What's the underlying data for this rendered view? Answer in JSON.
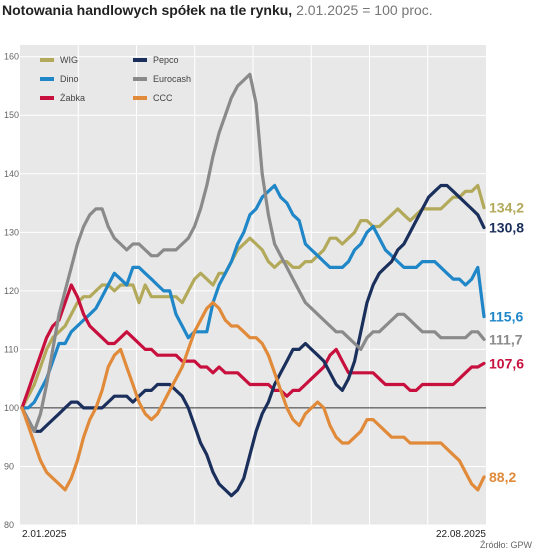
{
  "title": {
    "main": "Notowania handlowych spółek na tle rynku,",
    "sub": "2.01.2025 = 100 proc."
  },
  "source": "Źródło: GPW",
  "chart_data": {
    "type": "line",
    "title": "Notowania handlowych spółek na tle rynku, 2.01.2025 = 100 proc.",
    "xlabel": "",
    "ylabel": "",
    "ylim": [
      80,
      162
    ],
    "yticks": [
      80,
      90,
      100,
      110,
      120,
      130,
      140,
      150,
      160
    ],
    "baseline": 100,
    "x_range_labels": [
      "2.01.2025",
      "22.08.2025"
    ],
    "grid": true,
    "legend_position": "top-left",
    "series": [
      {
        "name": "WIG",
        "color": "#b3a95a",
        "end_label": "134,2",
        "values": [
          100,
          102,
          104,
          107,
          110,
          112,
          113,
          114,
          116,
          118,
          119,
          119,
          120,
          121,
          121,
          120,
          121,
          121,
          121,
          118,
          121,
          119,
          119,
          119,
          119,
          119,
          118,
          120,
          122,
          123,
          122,
          121,
          123,
          123,
          125,
          127,
          128,
          129,
          128,
          127,
          125,
          124,
          125,
          125,
          124,
          124,
          125,
          125,
          126,
          127,
          129,
          129,
          128,
          129,
          130,
          132,
          132,
          131,
          131,
          132,
          133,
          134,
          133,
          132,
          133,
          134,
          134,
          134,
          134,
          135,
          136,
          136,
          137,
          137,
          138,
          134.2
        ]
      },
      {
        "name": "Dino",
        "color": "#1f86c8",
        "end_label": "115,6",
        "values": [
          100,
          100,
          101,
          103,
          105,
          108,
          111,
          111,
          113,
          114,
          115,
          116,
          117,
          119,
          121,
          123,
          122,
          121,
          124,
          124,
          123,
          122,
          121,
          120,
          120,
          116,
          114,
          112,
          113,
          113,
          113,
          118,
          121,
          123,
          125,
          128,
          130,
          133,
          134,
          136,
          137,
          138,
          136,
          135,
          133,
          132,
          128,
          127,
          126,
          125,
          124,
          124,
          124,
          125,
          127,
          128,
          130,
          131,
          129,
          127,
          126,
          125,
          124,
          124,
          124,
          125,
          125,
          125,
          124,
          123,
          122,
          122,
          121,
          122,
          124,
          115.6
        ]
      },
      {
        "name": "Żabka",
        "color": "#c8103e",
        "end_label": "107,6",
        "values": [
          100,
          103,
          106,
          109,
          112,
          114,
          115,
          118,
          121,
          119,
          116,
          114,
          113,
          112,
          111,
          111,
          112,
          113,
          112,
          111,
          110,
          110,
          109,
          109,
          109,
          109,
          108,
          108,
          108,
          107,
          107,
          106,
          107,
          106,
          106,
          106,
          105,
          104,
          104,
          104,
          104,
          103,
          103,
          102,
          103,
          103,
          104,
          105,
          106,
          107,
          109,
          110,
          108,
          106,
          106,
          106,
          106,
          106,
          105,
          104,
          104,
          104,
          104,
          103,
          103,
          104,
          104,
          104,
          104,
          104,
          104,
          105,
          106,
          107,
          107,
          107.6
        ]
      },
      {
        "name": "Pepco",
        "color": "#1b2f5c",
        "end_label": "130,8",
        "values": [
          100,
          98,
          96,
          96,
          97,
          98,
          99,
          100,
          101,
          101,
          100,
          100,
          100,
          100,
          101,
          102,
          102,
          102,
          101,
          102,
          103,
          103,
          104,
          104,
          104,
          103,
          102,
          100,
          97,
          94,
          92,
          89,
          87,
          86,
          85,
          86,
          88,
          92,
          96,
          99,
          101,
          104,
          106,
          108,
          110,
          110,
          111,
          110,
          109,
          108,
          106,
          104,
          103,
          105,
          108,
          113,
          118,
          121,
          123,
          124,
          125,
          127,
          128,
          130,
          132,
          134,
          136,
          137,
          138,
          138,
          137,
          136,
          135,
          134,
          133,
          130.8
        ]
      },
      {
        "name": "Eurocash",
        "color": "#8a8a8a",
        "end_label": "111,7",
        "values": [
          100,
          98,
          96,
          99,
          104,
          110,
          116,
          120,
          124,
          128,
          131,
          133,
          134,
          134,
          131,
          129,
          128,
          127,
          128,
          128,
          127,
          126,
          126,
          127,
          127,
          127,
          128,
          129,
          131,
          134,
          138,
          143,
          147,
          150,
          153,
          155,
          156,
          157,
          152,
          140,
          133,
          128,
          126,
          124,
          122,
          120,
          118,
          117,
          116,
          115,
          114,
          113,
          113,
          112,
          111,
          110,
          112,
          113,
          113,
          114,
          115,
          116,
          116,
          115,
          114,
          113,
          113,
          113,
          112,
          112,
          112,
          112,
          112,
          113,
          113,
          111.7
        ]
      },
      {
        "name": "CCC",
        "color": "#e08a3a",
        "end_label": "88,2",
        "values": [
          100,
          97,
          94,
          91,
          89,
          88,
          87,
          86,
          88,
          91,
          95,
          98,
          100,
          103,
          107,
          109,
          110,
          107,
          104,
          101,
          99,
          98,
          99,
          101,
          103,
          105,
          107,
          110,
          113,
          115,
          117,
          118,
          117,
          115,
          114,
          114,
          113,
          112,
          112,
          111,
          109,
          106,
          103,
          100,
          98,
          97,
          99,
          100,
          101,
          100,
          97,
          95,
          94,
          94,
          95,
          96,
          98,
          98,
          97,
          96,
          95,
          95,
          95,
          94,
          94,
          94,
          94,
          94,
          94,
          93,
          92,
          91,
          89,
          87,
          86,
          88.2
        ]
      }
    ]
  }
}
